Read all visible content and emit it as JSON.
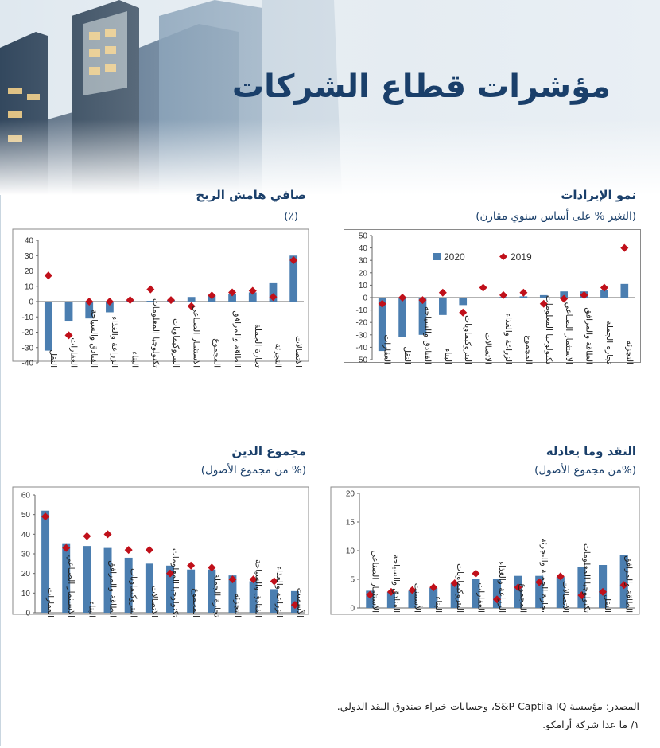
{
  "page": {
    "title": "مؤشرات قطاع الشركات",
    "source": "المصدر: مؤسسة S&P Captila IQ، وحسابات خبراء صندوق النقد الدولي.",
    "note": "١/ ما عدا شركة أرامكو."
  },
  "colors": {
    "bar": "#4b7eb0",
    "dot": "#c0101a",
    "title": "#1a3f6a"
  },
  "panels": {
    "revenue": {
      "title": "نمو الإيرادات",
      "subtitle": "(التغير % على أساس سنوي مقارن)"
    },
    "margin": {
      "title": "صافي هامش الربح",
      "subtitle": "(٪)"
    },
    "cash": {
      "title": "النقد وما يعادله",
      "subtitle": "(%من مجموع الأصول)"
    },
    "debt": {
      "title": "مجموع الدين",
      "subtitle": "(% من مجموع الأصول)"
    }
  },
  "chart_data": [
    {
      "id": "revenue",
      "type": "bar",
      "title": "نمو الإيرادات",
      "ylim": [
        -50,
        50
      ],
      "ticks": [
        -50,
        -40,
        -30,
        -20,
        -10,
        0,
        10,
        20,
        30,
        40,
        50
      ],
      "legend": {
        "position": "top",
        "items": [
          "2020",
          "2019"
        ]
      },
      "categories": [
        "العقارات",
        "النقل",
        "الفنادق والسياحة",
        "البناء",
        "البتروكيماويات",
        "الاتصالات",
        "الزراعة والغذاء",
        "المجموع",
        "تكنولوجيا المعلومات",
        "الاستثمار الصناعي",
        "الطاقة والمرافق",
        "تجارة الجملة",
        "التجزئة"
      ],
      "series": [
        {
          "name": "2020",
          "kind": "bar",
          "values": [
            -43,
            -32,
            -30,
            -14,
            -6,
            -0.5,
            0.5,
            1,
            2,
            5,
            5,
            6,
            11
          ]
        },
        {
          "name": "2019",
          "kind": "dot",
          "values": [
            -5,
            0,
            -2,
            4,
            -12,
            8,
            2,
            4,
            -5,
            -1,
            2,
            8,
            40
          ]
        }
      ]
    },
    {
      "id": "margin",
      "type": "bar",
      "title": "صافي هامش الربح",
      "ylim": [
        -40,
        40
      ],
      "ticks": [
        -40,
        -30,
        -20,
        -10,
        0,
        10,
        20,
        30,
        40
      ],
      "categories": [
        "النقل",
        "العقارات",
        "الفنادق والسياحة",
        "الزراعة والغذاء",
        "البناء",
        "تكنولوجيا المعلومات",
        "البتروكيماويات",
        "الاستثمار الصناعي",
        "المجموع",
        "الطاقة والمرافق",
        "تجارة الجملة",
        "التجزئة",
        "الاتصالات"
      ],
      "series": [
        {
          "name": "2020",
          "kind": "bar",
          "values": [
            -32,
            -13,
            -11,
            -7,
            0.5,
            0.5,
            1,
            3,
            4,
            5,
            6,
            12,
            30
          ]
        },
        {
          "name": "2019",
          "kind": "dot",
          "values": [
            17,
            -22,
            0,
            0,
            1,
            8,
            1,
            -3,
            4,
            6,
            7,
            3,
            27
          ]
        }
      ]
    },
    {
      "id": "cash",
      "type": "bar",
      "title": "النقد وما يعادله",
      "ylim": [
        0,
        20
      ],
      "ticks": [
        0,
        5,
        10,
        15,
        20
      ],
      "categories": [
        "الاستثمار الصناعي",
        "الفنادق والسياحة",
        "الأسمنت",
        "البناء",
        "البتروكيماويات",
        "العقارات",
        "الزراعة والغذاء",
        "المجموع",
        "تجارة الجملة والتجزئة",
        "الاتصالات",
        "تكنولوجيا المعلومات",
        "النقل",
        "الطاقة والمرافق"
      ],
      "series": [
        {
          "name": "2020",
          "kind": "bar",
          "values": [
            3,
            2.8,
            3,
            3.5,
            4.3,
            5.1,
            5,
            5.6,
            5.6,
            5.4,
            7.2,
            7.5,
            9.3
          ]
        },
        {
          "name": "2019",
          "kind": "dot",
          "values": [
            2.3,
            2.8,
            3.1,
            3.6,
            4.3,
            6,
            1.5,
            3.6,
            4.5,
            5.5,
            2.2,
            2.8,
            4
          ]
        }
      ]
    },
    {
      "id": "debt",
      "type": "bar",
      "title": "مجموع الدين",
      "ylim": [
        0,
        60
      ],
      "ticks": [
        0,
        10,
        20,
        30,
        40,
        50,
        60
      ],
      "categories": [
        "العقارات",
        "الاستثمار الصناعي",
        "البناء",
        "الطاقة والمرافق",
        "البتروكيماويات",
        "الاتصالات",
        "تكنولوجيا المعلومات",
        "المجموع",
        "تجارة الجملة",
        "التجزئة",
        "الفنادق والسياحة",
        "الزراعة والغذاء",
        "الأسمنت"
      ],
      "series": [
        {
          "name": "2020",
          "kind": "bar",
          "values": [
            52,
            35,
            34,
            33,
            28,
            25,
            24,
            22,
            22,
            19,
            16,
            12,
            11
          ]
        },
        {
          "name": "2019",
          "kind": "dot",
          "values": [
            49,
            33,
            39,
            40,
            32,
            32,
            20,
            24,
            23,
            17,
            17,
            16,
            4
          ]
        }
      ]
    }
  ]
}
